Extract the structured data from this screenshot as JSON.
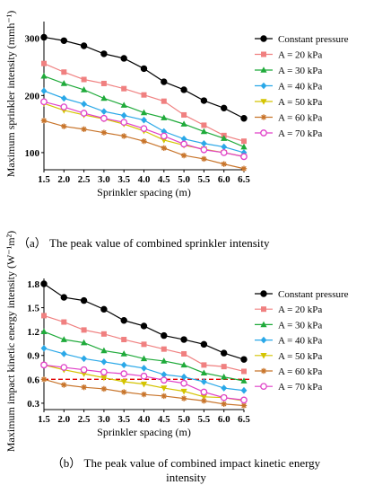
{
  "captions": {
    "a": "（a） The peak value of combined sprinkler intensity",
    "b_line1": "（b） The peak value of combined impact kinetic energy",
    "b_line2": "intensity"
  },
  "chart_data": [
    {
      "type": "line",
      "xlabel": "Sprinkler spacing (m)",
      "ylabel": "Maximum sprinkler intensity (mmh⁻¹)",
      "x": [
        1.5,
        2.0,
        2.5,
        3.0,
        3.5,
        4.0,
        4.5,
        5.0,
        5.5,
        6.0,
        6.5
      ],
      "x_tick_labels": [
        "1.5",
        "2.0",
        "2.5",
        "3.0",
        "3.5",
        "4.0",
        "4.5",
        "5.0",
        "5.5",
        "6.0",
        "6.5"
      ],
      "xlim": [
        1.5,
        6.5
      ],
      "ylim": [
        70,
        320
      ],
      "y_ticks": [
        100,
        200,
        300
      ],
      "legend": "top-right",
      "series": [
        {
          "name": "Constant pressure",
          "color": "#000000",
          "marker": "circle-filled",
          "values": [
            302,
            296,
            287,
            273,
            265,
            247,
            224,
            210,
            191,
            178,
            160
          ]
        },
        {
          "name": "A = 20 kPa",
          "color": "#f08080",
          "marker": "square",
          "values": [
            256,
            241,
            228,
            221,
            212,
            201,
            190,
            166,
            148,
            130,
            120
          ]
        },
        {
          "name": "A = 30 kPa",
          "color": "#1faa3a",
          "marker": "triangle",
          "values": [
            234,
            221,
            210,
            195,
            183,
            170,
            161,
            150,
            137,
            125,
            110
          ]
        },
        {
          "name": "A = 40 kPa",
          "color": "#2aa8e8",
          "marker": "diamond",
          "values": [
            208,
            195,
            185,
            172,
            165,
            157,
            137,
            124,
            116,
            110,
            100
          ]
        },
        {
          "name": "A = 50 kPa",
          "color": "#d4c400",
          "marker": "triangle-down",
          "values": [
            186,
            174,
            166,
            159,
            150,
            138,
            122,
            113,
            106,
            100,
            93
          ]
        },
        {
          "name": "A = 60 kPa",
          "color": "#c8742a",
          "marker": "star",
          "values": [
            156,
            146,
            141,
            135,
            129,
            120,
            108,
            95,
            89,
            80,
            72
          ]
        },
        {
          "name": "A = 70 kPa",
          "color": "#e040c8",
          "marker": "circle-open",
          "values": [
            189,
            180,
            169,
            160,
            153,
            142,
            129,
            115,
            105,
            100,
            93
          ]
        }
      ]
    },
    {
      "type": "line",
      "xlabel": "Sprinkler spacing (m)",
      "ylabel": "Maximum impact kinetic energy intensity (W⁻¹m²)",
      "x": [
        1.5,
        2.0,
        2.5,
        3.0,
        3.5,
        4.0,
        4.5,
        5.0,
        5.5,
        6.0,
        6.5
      ],
      "x_tick_labels": [
        "1.5",
        "2.0",
        "2.5",
        "3.0",
        "3.5",
        "4.0",
        "4.5",
        "5.0",
        "5.5",
        "6.0",
        "6.5"
      ],
      "xlim": [
        1.5,
        6.5
      ],
      "ylim": [
        0.22,
        1.8
      ],
      "y_ticks": [
        0.3,
        0.6,
        0.9,
        1.2,
        1.5,
        1.8
      ],
      "y_tick_labels": [
        "0.3",
        "0.6",
        "0.9",
        "1.2",
        "1.5",
        "1.8"
      ],
      "legend": "top-right",
      "reference_line": {
        "y": 0.6,
        "color": "#e00000",
        "style": "dashed"
      },
      "series": [
        {
          "name": "Constant pressure",
          "color": "#000000",
          "marker": "circle-filled",
          "values": [
            1.8,
            1.63,
            1.59,
            1.48,
            1.34,
            1.27,
            1.15,
            1.1,
            1.04,
            0.93,
            0.85
          ]
        },
        {
          "name": "A = 20 kPa",
          "color": "#f08080",
          "marker": "square",
          "values": [
            1.4,
            1.32,
            1.22,
            1.17,
            1.1,
            1.04,
            0.98,
            0.92,
            0.78,
            0.76,
            0.7
          ]
        },
        {
          "name": "A = 30 kPa",
          "color": "#1faa3a",
          "marker": "triangle",
          "values": [
            1.2,
            1.1,
            1.06,
            0.96,
            0.92,
            0.86,
            0.83,
            0.78,
            0.68,
            0.63,
            0.58
          ]
        },
        {
          "name": "A = 40 kPa",
          "color": "#2aa8e8",
          "marker": "diamond",
          "values": [
            0.99,
            0.92,
            0.86,
            0.82,
            0.78,
            0.74,
            0.66,
            0.63,
            0.57,
            0.49,
            0.46
          ]
        },
        {
          "name": "A = 50 kPa",
          "color": "#d4c400",
          "marker": "triangle-down",
          "values": [
            0.78,
            0.72,
            0.67,
            0.62,
            0.57,
            0.54,
            0.49,
            0.45,
            0.38,
            0.37,
            0.33
          ]
        },
        {
          "name": "A = 60 kPa",
          "color": "#c8742a",
          "marker": "star",
          "values": [
            0.6,
            0.53,
            0.5,
            0.48,
            0.44,
            0.41,
            0.39,
            0.36,
            0.33,
            0.29,
            0.27
          ]
        },
        {
          "name": "A = 70 kPa",
          "color": "#e040c8",
          "marker": "circle-open",
          "values": [
            0.78,
            0.75,
            0.72,
            0.69,
            0.67,
            0.64,
            0.59,
            0.55,
            0.44,
            0.37,
            0.34
          ]
        }
      ]
    }
  ]
}
